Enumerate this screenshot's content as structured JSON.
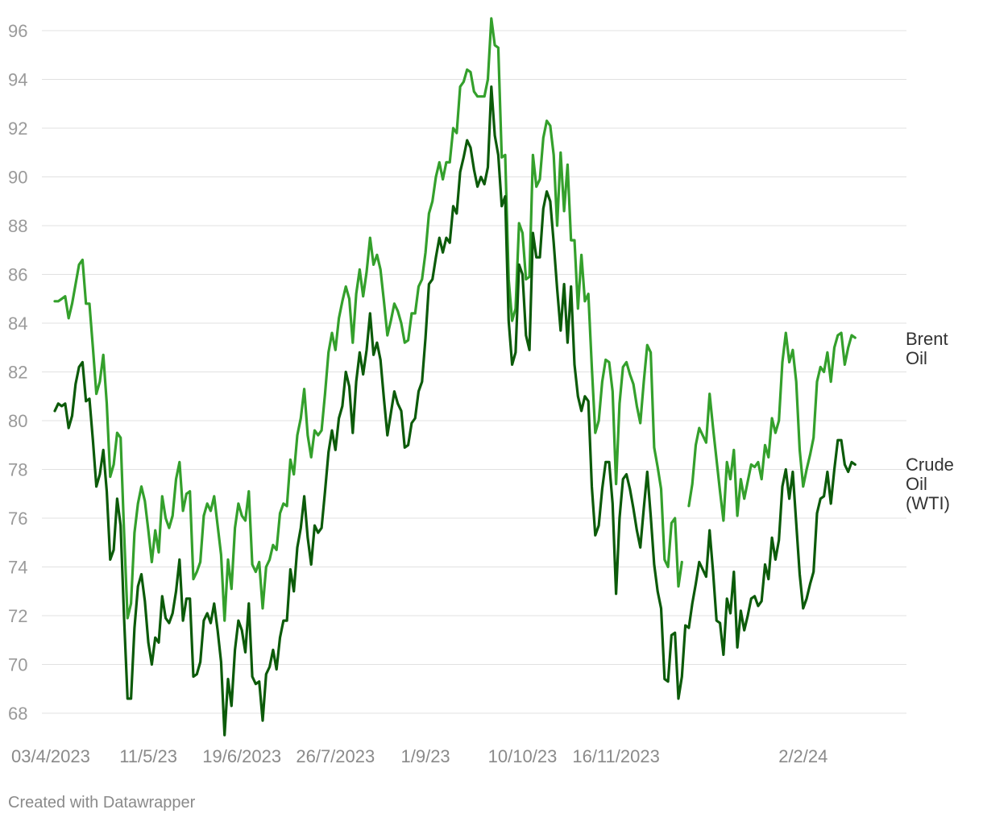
{
  "chart_data": {
    "type": "line",
    "title": "",
    "xlabel": "",
    "ylabel": "",
    "y_ticks": [
      68,
      70,
      72,
      74,
      76,
      78,
      80,
      82,
      84,
      86,
      88,
      90,
      92,
      94,
      96
    ],
    "ylim": [
      67,
      97
    ],
    "x_ticks": [
      "03/4/2023",
      "11/5/23",
      "19/6/2023",
      "26/7/2023",
      "1/9/23",
      "10/10/23",
      "16/11/2023",
      "2/2/24"
    ],
    "x_tick_index": [
      0,
      27,
      54,
      81,
      107,
      135,
      162,
      216
    ],
    "grid": true,
    "legend": "direct labels at line ends",
    "series": [
      {
        "name": "Brent Oil",
        "color": "#34a02c",
        "values": [
          84.9,
          84.9,
          85.0,
          85.1,
          84.2,
          84.8,
          85.6,
          86.4,
          86.6,
          84.8,
          84.8,
          83.0,
          81.1,
          81.6,
          82.7,
          80.7,
          77.7,
          78.2,
          79.5,
          79.3,
          75.4,
          71.9,
          72.5,
          75.4,
          76.6,
          77.3,
          76.7,
          75.5,
          74.2,
          75.5,
          74.6,
          76.9,
          76.0,
          75.6,
          76.1,
          77.6,
          78.3,
          76.3,
          77.0,
          77.1,
          73.5,
          73.8,
          74.2,
          76.1,
          76.6,
          76.3,
          76.9,
          75.7,
          74.5,
          71.8,
          74.3,
          73.1,
          75.6,
          76.6,
          76.1,
          75.9,
          77.1,
          74.1,
          73.8,
          74.2,
          72.3,
          74.0,
          74.3,
          74.9,
          74.7,
          76.2,
          76.6,
          76.5,
          78.4,
          77.8,
          79.4,
          80.1,
          81.3,
          79.4,
          78.5,
          79.6,
          79.4,
          79.6,
          81.1,
          82.8,
          83.6,
          82.9,
          84.2,
          84.9,
          85.5,
          85.0,
          83.2,
          85.2,
          86.2,
          85.1,
          86.1,
          87.5,
          86.4,
          86.8,
          86.2,
          84.9,
          83.5,
          84.1,
          84.8,
          84.5,
          84.0,
          83.2,
          83.3,
          84.4,
          84.4,
          85.5,
          85.8,
          86.9,
          88.5,
          89.0,
          90.0,
          90.6,
          89.9,
          90.6,
          90.6,
          92.0,
          91.8,
          93.7,
          93.9,
          94.4,
          94.3,
          93.5,
          93.3,
          93.3,
          93.3,
          94.0,
          96.5,
          95.4,
          95.3,
          90.8,
          90.9,
          85.8,
          84.1,
          84.6,
          88.1,
          87.7,
          85.8,
          85.9,
          90.9,
          89.6,
          89.9,
          91.6,
          92.3,
          92.1,
          90.9,
          88.0,
          91.0,
          88.6,
          90.5,
          87.4,
          87.4,
          84.6,
          86.8,
          84.9,
          85.2,
          82.2,
          79.5,
          80.0,
          81.6,
          82.5,
          82.4,
          81.2,
          77.4,
          80.7,
          82.2,
          82.4,
          81.9,
          81.5,
          80.6,
          79.9,
          81.6,
          83.1,
          82.8,
          78.9,
          78.1,
          77.2,
          74.3,
          74.0,
          75.8,
          76.0,
          73.2,
          74.2,
          null,
          76.5,
          77.4,
          79.0,
          79.7,
          79.4,
          79.1,
          81.1,
          79.7,
          78.4,
          77.1,
          75.9,
          78.3,
          77.6,
          78.8,
          76.1,
          77.6,
          76.8,
          77.5,
          78.2,
          78.1,
          78.3,
          77.6,
          79.0,
          78.5,
          80.1,
          79.5,
          80.0,
          82.4,
          83.6,
          82.4,
          82.9,
          81.6,
          78.8,
          77.3,
          78.0,
          78.6,
          79.3,
          81.6,
          82.2,
          82.0,
          82.8,
          81.6,
          83.0,
          83.5,
          83.6,
          82.3,
          83.0,
          83.5,
          83.4
        ],
        "end_label": [
          "Brent",
          "Oil"
        ]
      },
      {
        "name": "Crude Oil (WTI)",
        "color": "#0c5b0a",
        "values": [
          80.4,
          80.7,
          80.6,
          80.7,
          79.7,
          80.2,
          81.5,
          82.2,
          82.4,
          80.8,
          80.9,
          79.2,
          77.3,
          77.8,
          78.8,
          77.1,
          74.3,
          74.7,
          76.8,
          75.7,
          71.9,
          68.6,
          68.6,
          71.5,
          73.2,
          73.7,
          72.6,
          70.9,
          70.0,
          71.1,
          70.9,
          72.8,
          71.9,
          71.7,
          72.1,
          73.0,
          74.3,
          71.8,
          72.7,
          72.7,
          69.5,
          69.6,
          70.1,
          71.8,
          72.1,
          71.7,
          72.5,
          71.4,
          70.1,
          67.1,
          69.4,
          68.3,
          70.6,
          71.8,
          71.4,
          70.5,
          72.5,
          69.5,
          69.2,
          69.3,
          67.7,
          69.6,
          69.9,
          70.6,
          69.8,
          71.1,
          71.8,
          71.8,
          73.9,
          73.0,
          74.8,
          75.6,
          76.9,
          75.2,
          74.1,
          75.7,
          75.4,
          75.6,
          77.1,
          78.7,
          79.6,
          78.8,
          80.1,
          80.6,
          82.0,
          81.4,
          79.5,
          81.6,
          82.8,
          81.9,
          82.9,
          84.4,
          82.7,
          83.2,
          82.5,
          80.9,
          79.4,
          80.3,
          81.2,
          80.7,
          80.4,
          78.9,
          79.0,
          79.9,
          80.1,
          81.2,
          81.6,
          83.4,
          85.6,
          85.8,
          86.7,
          87.5,
          86.9,
          87.5,
          87.3,
          88.8,
          88.5,
          90.2,
          90.8,
          91.5,
          91.2,
          90.3,
          89.6,
          90.0,
          89.7,
          90.4,
          93.7,
          91.7,
          90.9,
          88.8,
          89.2,
          84.1,
          82.3,
          82.8,
          86.4,
          86.0,
          83.5,
          82.9,
          87.7,
          86.7,
          86.7,
          88.7,
          89.4,
          89.0,
          87.3,
          85.4,
          83.7,
          85.6,
          83.2,
          85.5,
          82.3,
          81.0,
          80.4,
          81.0,
          80.8,
          77.3,
          75.3,
          75.7,
          77.2,
          78.3,
          78.3,
          76.6,
          72.9,
          76.0,
          77.6,
          77.8,
          77.2,
          76.4,
          75.5,
          74.8,
          76.4,
          77.9,
          76.1,
          74.1,
          73.0,
          72.3,
          69.4,
          69.3,
          71.2,
          71.3,
          68.6,
          69.5,
          71.6,
          71.5,
          72.5,
          73.3,
          74.2,
          73.9,
          73.6,
          75.5,
          73.8,
          71.8,
          71.7,
          70.4,
          72.7,
          72.1,
          73.8,
          70.7,
          72.2,
          71.4,
          72.0,
          72.7,
          72.8,
          72.4,
          72.6,
          74.1,
          73.5,
          75.2,
          74.3,
          75.1,
          77.3,
          78.0,
          76.8,
          77.9,
          75.8,
          73.7,
          72.3,
          72.7,
          73.3,
          73.8,
          76.2,
          76.8,
          76.9,
          77.9,
          76.6,
          78.0,
          79.2,
          79.2,
          78.2,
          77.9,
          78.3,
          78.2
        ],
        "end_label": [
          "Crude",
          "Oil",
          "(WTI)"
        ]
      }
    ]
  },
  "footer": {
    "credit": "Created with Datawrapper"
  }
}
